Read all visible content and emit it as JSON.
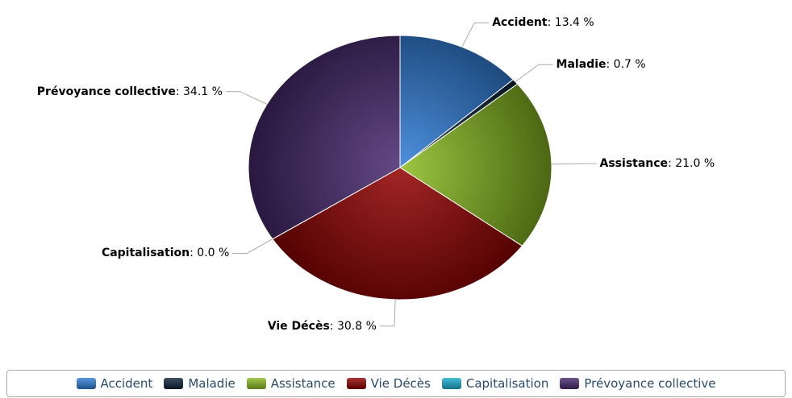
{
  "chart_data": {
    "type": "pie",
    "categories": [
      "Accident",
      "Maladie",
      "Assistance",
      "Vie Décès",
      "Capitalisation",
      "Prévoyance collective"
    ],
    "values": [
      13.4,
      0.7,
      21.0,
      30.8,
      0.0,
      34.1
    ],
    "value_labels": [
      "13.4 %",
      "0.7 %",
      "21.0 %",
      "30.8 %",
      "0.0 %",
      "34.1 %"
    ],
    "colors": [
      "#2f7ed8",
      "#0d233a",
      "#8bbc21",
      "#910000",
      "#1aadce",
      "#492970"
    ],
    "legend": "bottom"
  }
}
